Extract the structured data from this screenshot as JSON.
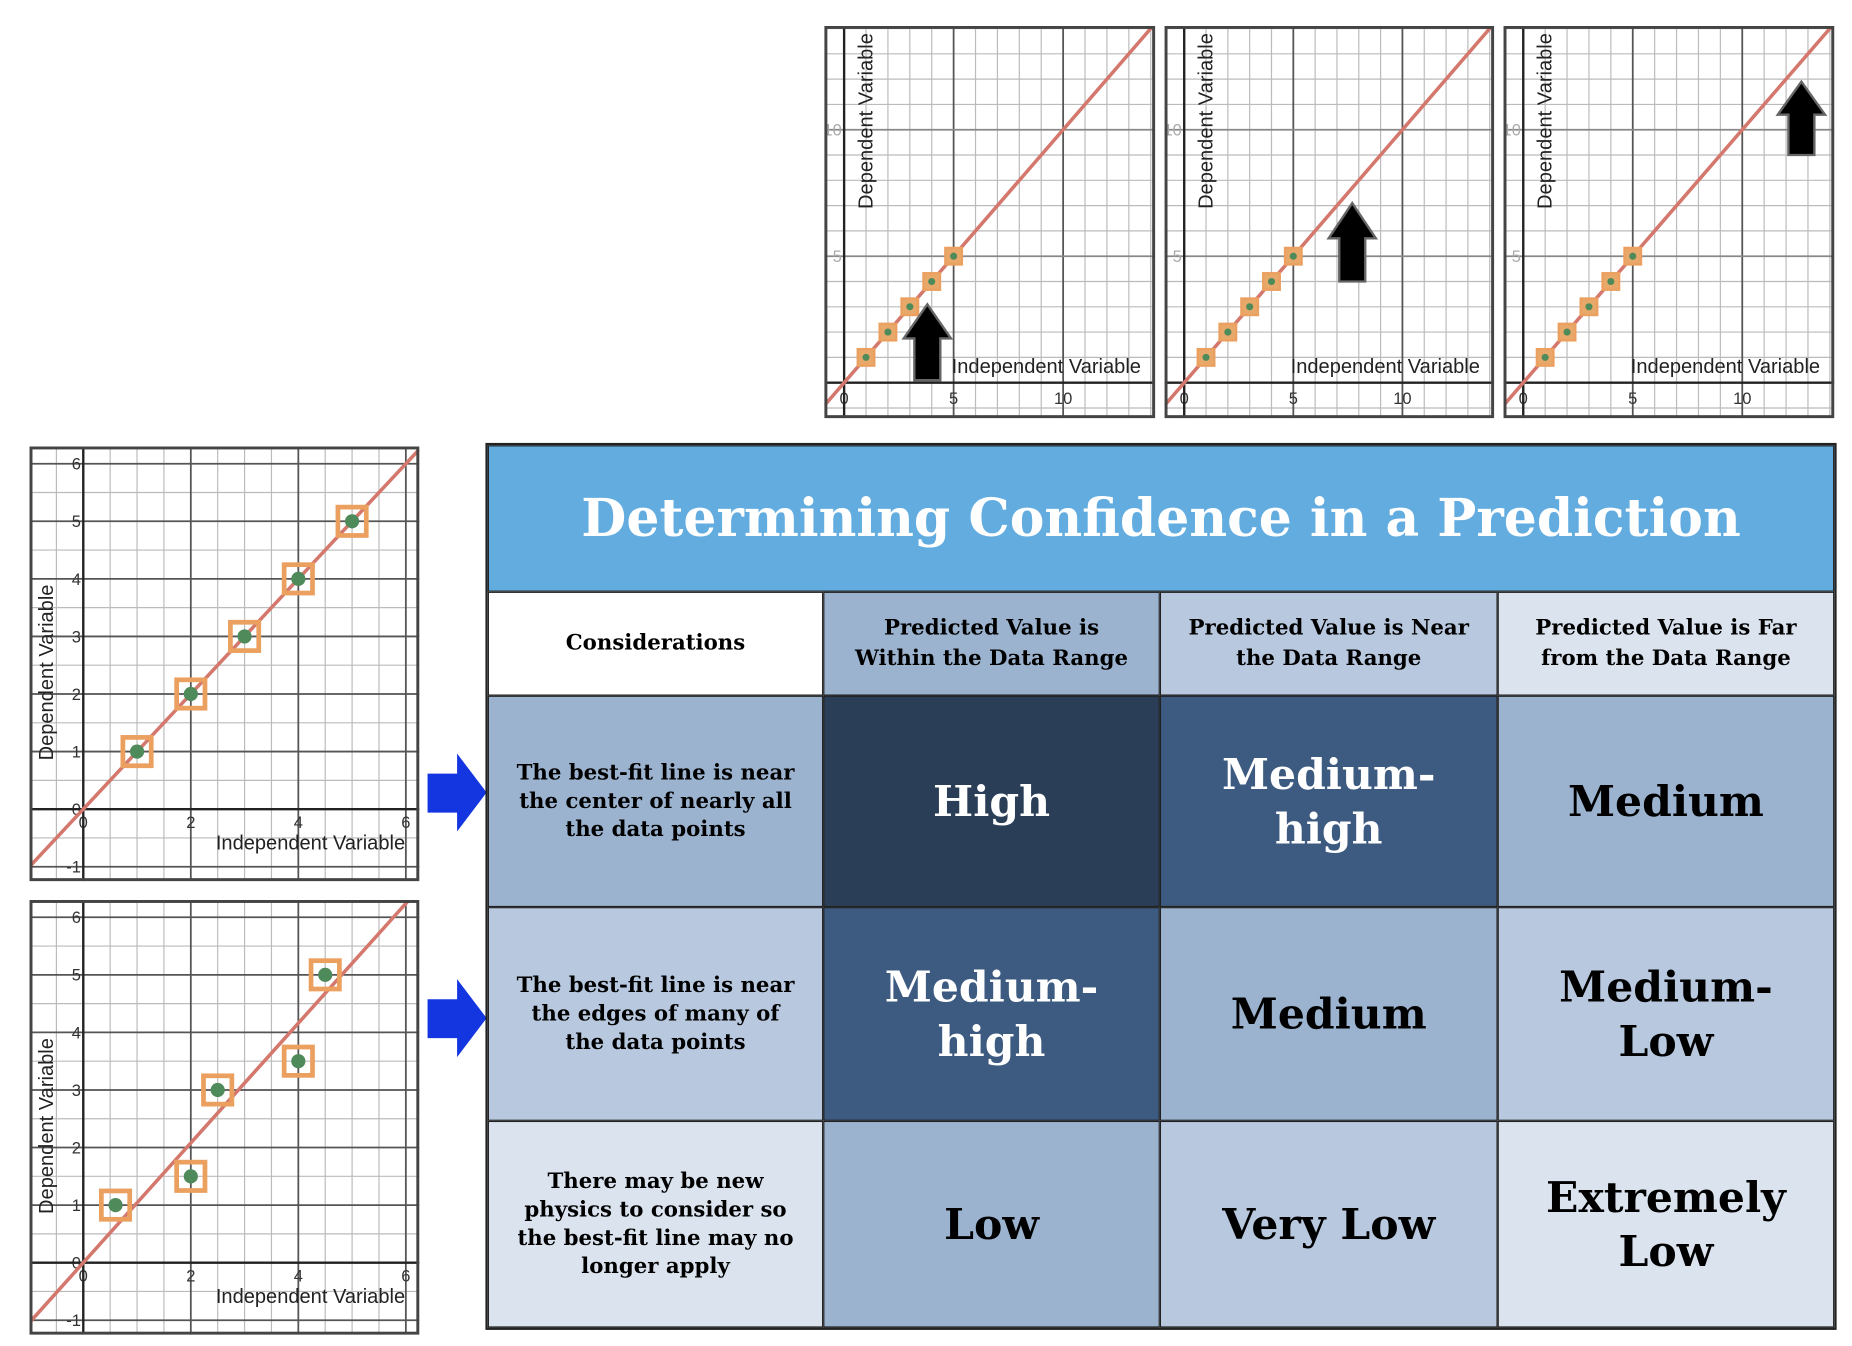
{
  "top_charts": [
    {
      "x_label": "Independent Variable",
      "y_label": "Dependent Variable",
      "xlim": [
        -0.9,
        14.2
      ],
      "ylim": [
        -1.4,
        14.1
      ],
      "xticks": [
        0,
        5,
        10
      ],
      "yticks": [
        5,
        10
      ],
      "fit": {
        "slope": 1,
        "intercept": 0
      },
      "points": {
        "x": [
          1,
          2,
          3,
          4,
          5
        ],
        "y": [
          1,
          2,
          3,
          4,
          5
        ]
      }
    },
    {
      "x_label": "Independent Variable",
      "y_label": "Dependent Variable",
      "xlim": [
        -0.9,
        14.2
      ],
      "ylim": [
        -1.4,
        14.1
      ],
      "xticks": [
        0,
        5,
        10
      ],
      "yticks": [
        5,
        10
      ],
      "fit": {
        "slope": 1,
        "intercept": 0
      },
      "points": {
        "x": [
          1,
          2,
          3,
          4,
          5
        ],
        "y": [
          1,
          2,
          3,
          4,
          5
        ]
      }
    },
    {
      "x_label": "Independent Variable",
      "y_label": "Dependent Variable",
      "xlim": [
        -0.9,
        14.2
      ],
      "ylim": [
        -1.4,
        14.1
      ],
      "xticks": [
        0,
        5,
        10
      ],
      "yticks": [
        5,
        10
      ],
      "fit": {
        "slope": 1,
        "intercept": 0
      },
      "points": {
        "x": [
          1,
          2,
          3,
          4,
          5
        ],
        "y": [
          1,
          2,
          3,
          4,
          5
        ]
      }
    }
  ],
  "left_charts": [
    {
      "x_label": "Independent Variable",
      "y_label": "Dependent Variable",
      "xlim": [
        -1,
        6.25
      ],
      "ylim": [
        -1.25,
        6.3
      ],
      "xticks": [
        0,
        2,
        4,
        6
      ],
      "yticks": [
        -1,
        0,
        1,
        2,
        3,
        4,
        5,
        6
      ],
      "fit": {
        "slope": 1,
        "intercept": 0
      },
      "points": {
        "x": [
          1,
          2,
          3,
          4,
          5
        ],
        "y": [
          1,
          2,
          3,
          4,
          5
        ]
      }
    },
    {
      "x_label": "Independent Variable",
      "y_label": "Dependent Variable",
      "xlim": [
        -1,
        6.25
      ],
      "ylim": [
        -1.25,
        6.3
      ],
      "xticks": [
        0,
        2,
        4,
        6
      ],
      "yticks": [
        -1,
        0,
        1,
        2,
        3,
        4,
        5,
        6
      ],
      "fit": {
        "slope": 1.04,
        "intercept": 0
      },
      "points": {
        "x": [
          0.6,
          2,
          2.5,
          4,
          4.5
        ],
        "y": [
          1,
          1.5,
          3,
          3.5,
          5
        ]
      }
    }
  ],
  "table": {
    "title": "Determining Confidence in a Prediction",
    "columns": [
      "Considerations",
      "Predicted Value is Within the Data Range",
      "Predicted Value is Near the Data Range",
      "Predicted Value is Far from the Data Range"
    ],
    "rows": [
      [
        "The best-fit line is near the center of nearly all the data points",
        "High",
        "Medium-high",
        "Medium"
      ],
      [
        "The best-fit line is near the edges of many of the data points",
        "Medium-high",
        "Medium",
        "Medium-Low"
      ],
      [
        "There may be new physics to consider so the best-fit line may no longer apply",
        "Low",
        "Very Low",
        "Extremely Low"
      ]
    ]
  }
}
